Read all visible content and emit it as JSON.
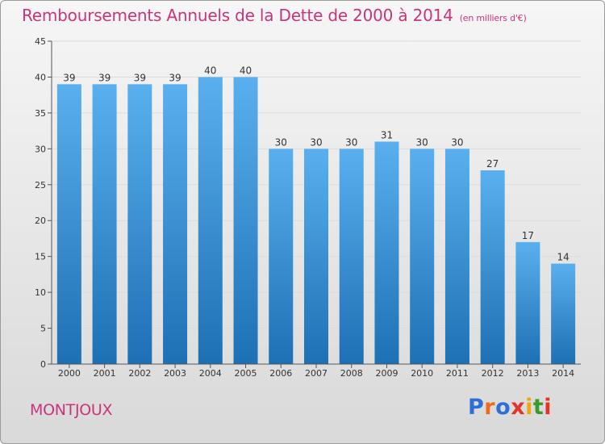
{
  "title": {
    "main": "Remboursements Annuels de la Dette de 2000 à 2014",
    "unit": "(en milliers d'€)"
  },
  "commune": "MONTJOUX",
  "logo": {
    "text": "Proxiti",
    "letter_colors": [
      "#2d6fd4",
      "#f06a1e",
      "#2d6fd4",
      "#e6332a",
      "#f1a513",
      "#3a9a2c",
      "#e6332a"
    ]
  },
  "colors": {
    "title": "#c8357a",
    "bar_top": "#5ab0ee",
    "bar_bottom": "#1d70b4",
    "grid": "#dcdcdc",
    "axis": "#555555"
  },
  "chart_data": {
    "type": "bar",
    "title": "Remboursements Annuels de la Dette de 2000 à 2014",
    "xlabel": "",
    "ylabel": "",
    "categories": [
      "2000",
      "2001",
      "2002",
      "2003",
      "2004",
      "2005",
      "2006",
      "2007",
      "2008",
      "2009",
      "2010",
      "2011",
      "2012",
      "2013",
      "2014"
    ],
    "values": [
      39,
      39,
      39,
      39,
      40,
      40,
      30,
      30,
      30,
      31,
      30,
      30,
      27,
      17,
      14
    ],
    "data_labels": [
      "39",
      "39",
      "39",
      "39",
      "40",
      "40",
      "30",
      "30",
      "30",
      "31",
      "30",
      "30",
      "27",
      "17",
      "14"
    ],
    "ylim": [
      0,
      45
    ],
    "yticks": [
      0,
      5,
      10,
      15,
      20,
      25,
      30,
      35,
      40,
      45
    ],
    "ytick_labels": [
      "0",
      "5",
      "10",
      "15",
      "20",
      "25",
      "30",
      "35",
      "40",
      "45"
    ],
    "grid": true,
    "legend": "none"
  }
}
